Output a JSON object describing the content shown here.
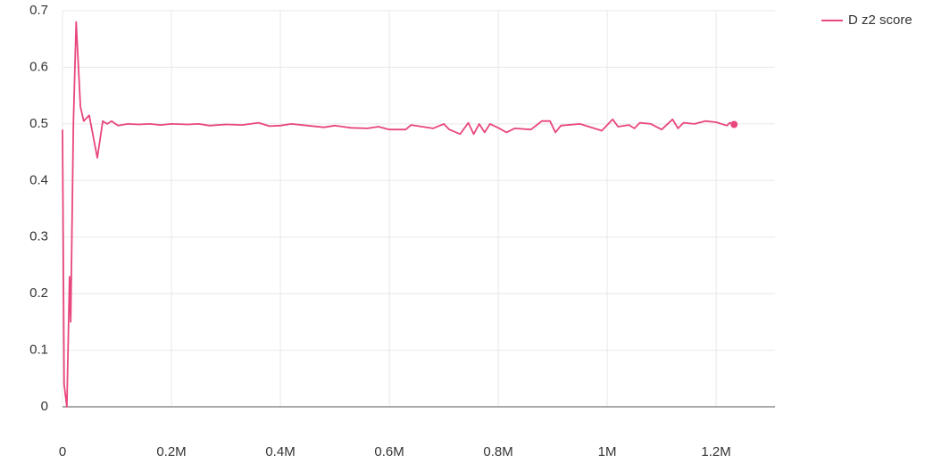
{
  "chart_data": {
    "type": "line",
    "xlim": [
      0,
      1308000
    ],
    "ylim": [
      0,
      0.7
    ],
    "xticks": [
      0,
      {
        "value": 200000,
        "label": "0.2M"
      },
      {
        "value": 400000,
        "label": "0.4M"
      },
      {
        "value": 600000,
        "label": "0.6M"
      },
      {
        "value": 800000,
        "label": "0.8M"
      },
      {
        "value": 1000000,
        "label": "1M"
      },
      {
        "value": 1200000,
        "label": "1.2M"
      }
    ],
    "yticks": [
      0,
      0.1,
      0.2,
      0.3,
      0.4,
      0.5,
      0.6,
      0.7
    ],
    "grid": true,
    "legend": "top-right",
    "x": [
      0,
      3000,
      8000,
      13000,
      15000,
      20000,
      25000,
      33000,
      39000,
      49000,
      64000,
      74000,
      82000,
      90000,
      102000,
      120000,
      140000,
      160000,
      180000,
      200000,
      230000,
      250000,
      270000,
      300000,
      330000,
      360000,
      380000,
      400000,
      420000,
      450000,
      480000,
      500000,
      530000,
      560000,
      580000,
      600000,
      630000,
      640000,
      660000,
      680000,
      700000,
      710000,
      730000,
      745000,
      755000,
      765000,
      775000,
      785000,
      800000,
      815000,
      830000,
      860000,
      880000,
      895000,
      905000,
      915000,
      950000,
      990000,
      1010000,
      1020000,
      1040000,
      1050000,
      1060000,
      1080000,
      1100000,
      1120000,
      1130000,
      1140000,
      1160000,
      1180000,
      1200000,
      1220000,
      1225000,
      1233000
    ],
    "series": [
      {
        "name": "D z2 score",
        "color": "#e8467c",
        "values": [
          0.49,
          0.04,
          0.0,
          0.23,
          0.15,
          0.5,
          0.68,
          0.53,
          0.505,
          0.515,
          0.44,
          0.505,
          0.5,
          0.505,
          0.497,
          0.5,
          0.499,
          0.5,
          0.498,
          0.5,
          0.499,
          0.5,
          0.497,
          0.499,
          0.498,
          0.502,
          0.496,
          0.497,
          0.5,
          0.497,
          0.494,
          0.497,
          0.493,
          0.492,
          0.495,
          0.49,
          0.49,
          0.498,
          0.495,
          0.492,
          0.5,
          0.49,
          0.482,
          0.502,
          0.482,
          0.5,
          0.485,
          0.5,
          0.493,
          0.485,
          0.492,
          0.49,
          0.505,
          0.505,
          0.485,
          0.497,
          0.5,
          0.488,
          0.508,
          0.495,
          0.498,
          0.492,
          0.502,
          0.5,
          0.49,
          0.508,
          0.492,
          0.502,
          0.5,
          0.505,
          0.503,
          0.497,
          0.502,
          0.499
        ]
      }
    ]
  }
}
